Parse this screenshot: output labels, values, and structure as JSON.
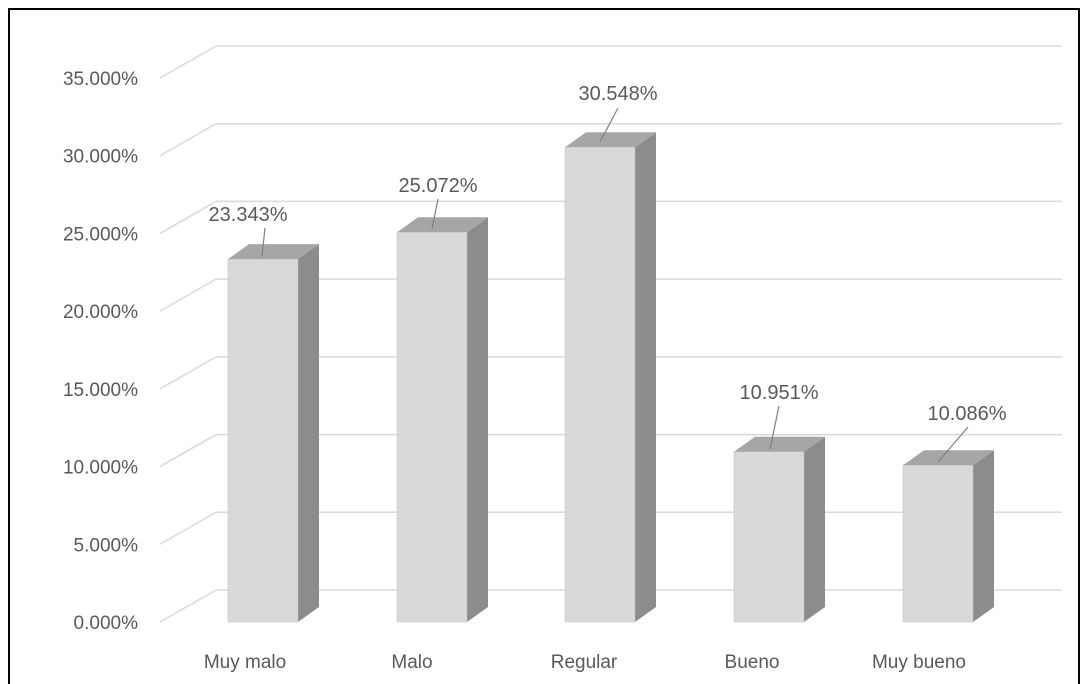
{
  "chart_data": {
    "type": "bar",
    "style": "3d-column",
    "categories": [
      "Muy malo",
      "Malo",
      "Regular",
      "Bueno",
      "Muy bueno"
    ],
    "values": [
      23.343,
      25.072,
      30.548,
      10.951,
      10.086
    ],
    "data_labels": [
      "23.343%",
      "25.072%",
      "30.548%",
      "10.951%",
      "10.086%"
    ],
    "y_ticks": [
      "0.000%",
      "5.000%",
      "10.000%",
      "15.000%",
      "20.000%",
      "25.000%",
      "30.000%",
      "35.000%"
    ],
    "ylim": [
      0,
      35
    ],
    "title": "",
    "xlabel": "",
    "ylabel": "",
    "grid": true,
    "legend": "none",
    "colors": {
      "bar_front": "#d9d9d9",
      "bar_side": "#8c8c8c",
      "bar_top": "#a6a6a6",
      "grid": "#d9d9d9",
      "text": "#595959",
      "frame": "#000000"
    }
  }
}
